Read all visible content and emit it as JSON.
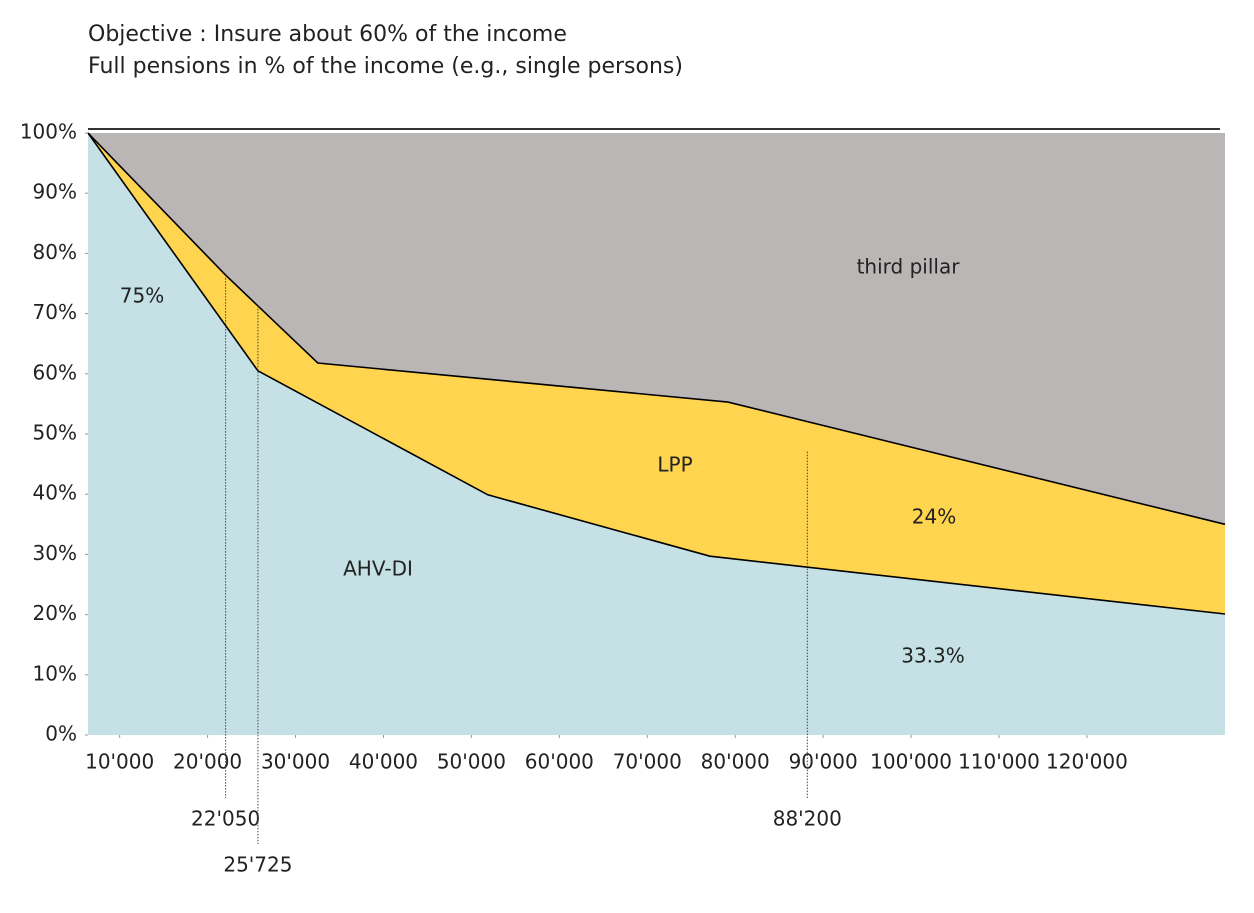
{
  "chart_data": {
    "type": "area",
    "title": "Objective : Insure about 60% of the income",
    "subtitle": "Full pensions in % of the income (e.g., single persons)",
    "xlim": [
      6400,
      135700
    ],
    "ylim": [
      0,
      100
    ],
    "xticks": [
      {
        "value": 10000,
        "label": "10'000"
      },
      {
        "value": 20000,
        "label": "20'000"
      },
      {
        "value": 30000,
        "label": "30'000"
      },
      {
        "value": 40000,
        "label": "40'000"
      },
      {
        "value": 50000,
        "label": "50'000"
      },
      {
        "value": 60000,
        "label": "60'000"
      },
      {
        "value": 70000,
        "label": "70'000"
      },
      {
        "value": 80000,
        "label": "80'000"
      },
      {
        "value": 90000,
        "label": "90'000"
      },
      {
        "value": 100000,
        "label": "100'000"
      },
      {
        "value": 110000,
        "label": "110'000"
      },
      {
        "value": 120000,
        "label": "120'000"
      }
    ],
    "yticks": [
      {
        "value": 0,
        "label": "0%"
      },
      {
        "value": 10,
        "label": "10%"
      },
      {
        "value": 20,
        "label": "20%"
      },
      {
        "value": 30,
        "label": "30%"
      },
      {
        "value": 40,
        "label": "40%"
      },
      {
        "value": 50,
        "label": "50%"
      },
      {
        "value": 60,
        "label": "60%"
      },
      {
        "value": 70,
        "label": "70%"
      },
      {
        "value": 80,
        "label": "80%"
      },
      {
        "value": 90,
        "label": "90%"
      },
      {
        "value": 100,
        "label": "100%"
      }
    ],
    "lines": [
      {
        "x": [
          6400,
          25725,
          51870,
          77120,
          135700
        ],
        "values": [
          100,
          60.5,
          39.9,
          29.7,
          20.1
        ]
      },
      {
        "x": [
          6400,
          22050,
          32530,
          79170,
          135700
        ],
        "values": [
          100,
          76.4,
          61.8,
          55.3,
          35.0
        ]
      }
    ],
    "areas": [
      {
        "label": "AHV-DI",
        "color": "#c5e1e5"
      },
      {
        "label": "LPP",
        "color": "#ffd44f"
      },
      {
        "label": "third pillar",
        "color": "#bab6b5"
      }
    ],
    "annotations": [
      "75%",
      "24%",
      "33.3%"
    ],
    "markers": [
      {
        "value": 22050,
        "label": "22'050"
      },
      {
        "value": 25725,
        "label": "25'725"
      },
      {
        "value": 88200,
        "label": "88'200"
      }
    ]
  }
}
